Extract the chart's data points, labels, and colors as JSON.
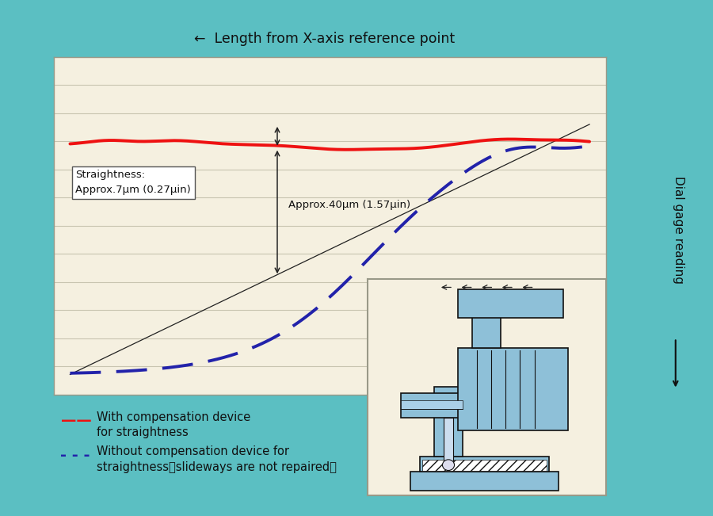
{
  "background_color": "#5bbfc2",
  "plot_bg_color": "#f5f0e0",
  "title_text": "←  Length from X-axis reference point",
  "y_axis_label": "Dial gage reading",
  "straightness_label": "Straightness:\nApprox.7μm (0.27μin)",
  "approx40_label": "Approx.40μm (1.57μin)",
  "legend_red": "With compensation device\nfor straightness",
  "legend_blue": "Without compensation device for\nstraightness（slideways are not repaired）",
  "red_color": "#ee1111",
  "blue_color": "#2222aa",
  "diag_color": "#222222",
  "grid_color": "#c8c4b0",
  "num_hlines": 11,
  "machine_fill": "#8ec0d8",
  "machine_edge": "#111111"
}
